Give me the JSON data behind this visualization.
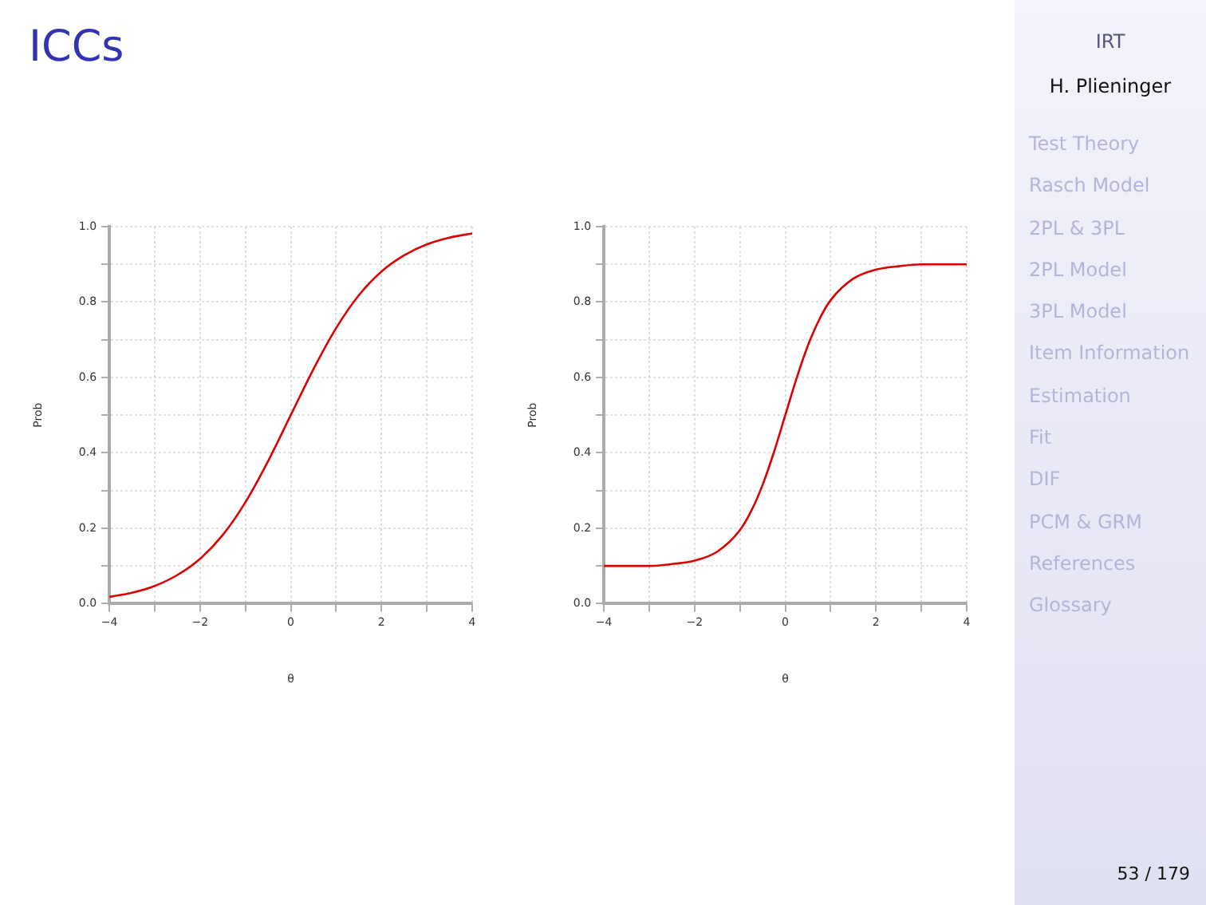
{
  "chart_data": [
    {
      "type": "line",
      "title": "ICCs",
      "xlabel": "θ",
      "ylabel": "Prob",
      "x": [
        -4,
        -3.5,
        -3,
        -2.5,
        -2,
        -1.5,
        -1,
        -0.5,
        0,
        0.5,
        1,
        1.5,
        2,
        2.5,
        3,
        3.5,
        4
      ],
      "series": [
        {
          "color": "#dd0000",
          "values": [
            0.018,
            0.029,
            0.047,
            0.076,
            0.119,
            0.182,
            0.269,
            0.378,
            0.5,
            0.622,
            0.731,
            0.818,
            0.881,
            0.924,
            0.953,
            0.971,
            0.982
          ]
        }
      ],
      "xlim": [
        -4,
        4
      ],
      "xticks": [
        -4,
        {
          "value": -3,
          "label": null
        },
        -2,
        {
          "value": -1,
          "label": null
        },
        0,
        {
          "value": 1,
          "label": null
        },
        2,
        {
          "value": 3,
          "label": null
        },
        4
      ],
      "ylim": [
        0,
        1
      ],
      "yticks": [
        {
          "value": 0,
          "label": "0.0"
        },
        {
          "value": 0.1,
          "label": null
        },
        0.2,
        {
          "value": 0.3,
          "label": null
        },
        0.4,
        {
          "value": 0.5,
          "label": null
        },
        0.6,
        {
          "value": 0.7,
          "label": null
        },
        0.8,
        {
          "value": 0.9,
          "label": null
        },
        {
          "value": 1,
          "label": "1.0"
        }
      ],
      "grid": true,
      "legend": false,
      "marker": "none",
      "line_style": "solid"
    },
    {
      "type": "line",
      "xlabel": "θ",
      "ylabel": "Prob",
      "x": [
        -4,
        -3.5,
        -3,
        -2.5,
        -2,
        -1.5,
        -1,
        -0.75,
        -0.5,
        -0.25,
        0,
        0.25,
        0.5,
        0.75,
        1,
        1.5,
        2,
        2.5,
        3,
        3.5,
        4
      ],
      "series": [
        {
          "color": "#dd0000",
          "values": [
            0.1,
            0.1,
            0.1,
            0.105,
            0.114,
            0.138,
            0.195,
            0.246,
            0.315,
            0.402,
            0.5,
            0.598,
            0.685,
            0.754,
            0.805,
            0.862,
            0.886,
            0.895,
            0.9,
            0.9,
            0.9
          ]
        }
      ],
      "xlim": [
        -4,
        4
      ],
      "xticks": [
        -4,
        {
          "value": -3,
          "label": null
        },
        -2,
        {
          "value": -1,
          "label": null
        },
        0,
        {
          "value": 1,
          "label": null
        },
        2,
        {
          "value": 3,
          "label": null
        },
        4
      ],
      "ylim": [
        0,
        1
      ],
      "yticks": [
        {
          "value": 0,
          "label": "0.0"
        },
        {
          "value": 0.1,
          "label": null
        },
        0.2,
        {
          "value": 0.3,
          "label": null
        },
        0.4,
        {
          "value": 0.5,
          "label": null
        },
        0.6,
        {
          "value": 0.7,
          "label": null
        },
        0.8,
        {
          "value": 0.9,
          "label": null
        },
        {
          "value": 1,
          "label": "1.0"
        }
      ],
      "grid": true,
      "legend": false,
      "marker": "none",
      "line_style": "solid"
    },
    {
      "type": "other",
      "title": "IRT",
      "subtitle": "H. Plieninger",
      "annotations": [
        "Test Theory",
        "Rasch Model",
        "2PL & 3PL",
        "2PL Model",
        "3PL Model",
        "Item Information",
        "Estimation",
        "Fit",
        "DIF",
        "PCM & GRM",
        "References",
        "Glossary",
        "53 / 179"
      ]
    }
  ]
}
